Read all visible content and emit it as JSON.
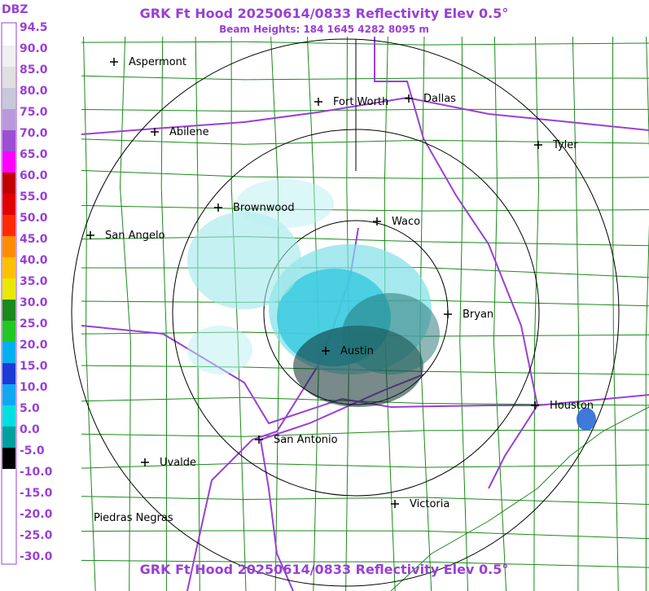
{
  "header": {
    "title": "GRK Ft Hood 20250614/0833 Reflectivity Elev 0.5°",
    "subtitle": "Beam Heights: 184 1645 4282 8095 m"
  },
  "footer": {
    "title": "GRK Ft Hood 20250614/0833 Reflectivity Elev 0.5°"
  },
  "scale": {
    "unit": "DBZ",
    "labels": [
      "94.5",
      "90.0",
      "85.0",
      "80.0",
      "75.0",
      "70.0",
      "65.0",
      "60.0",
      "55.0",
      "50.0",
      "45.0",
      "40.0",
      "35.0",
      "30.0",
      "25.0",
      "20.0",
      "15.0",
      "10.0",
      "5.0",
      "0.0",
      "-5.0",
      "-10.0",
      "-15.0",
      "-20.0",
      "-25.0",
      "-30.0"
    ]
  },
  "cities": [
    "Aspermont",
    "Fort Worth",
    "Dallas",
    "Abilene",
    "Tyler",
    "Brownwood",
    "Waco",
    "San Angelo",
    "Bryan",
    "Austin",
    "Houston",
    "San Antonio",
    "Uvalde",
    "Victoria",
    "Piedras Negras"
  ]
}
